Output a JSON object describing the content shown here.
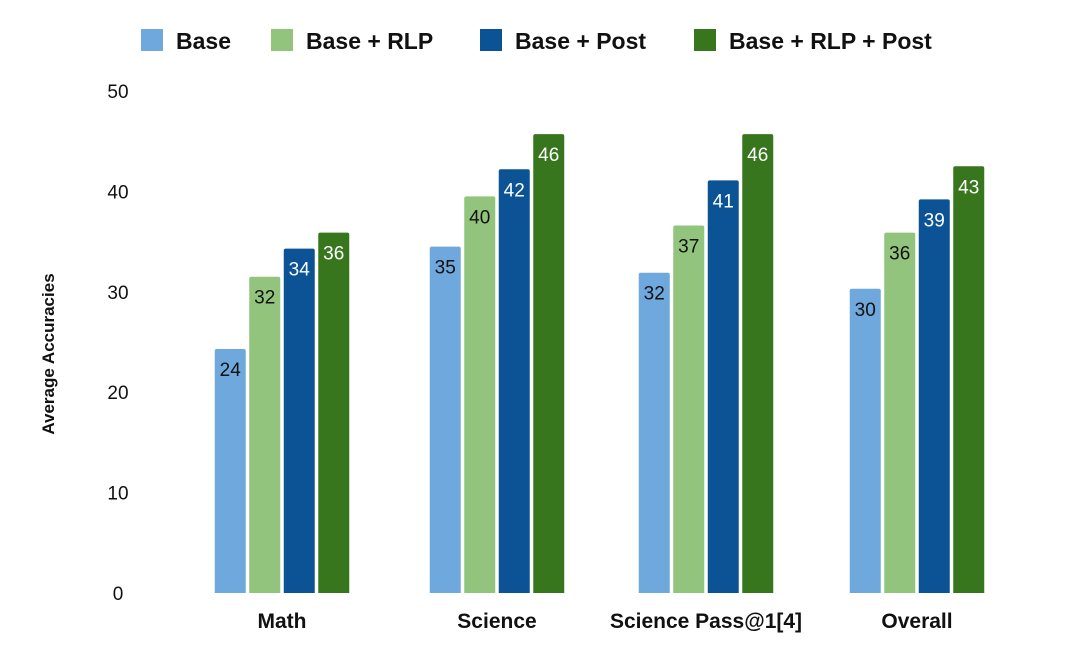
{
  "chart_data": {
    "type": "bar",
    "title": "",
    "xlabel": "",
    "ylabel": "Average Accuracies",
    "ylim": [
      0,
      50
    ],
    "yticks": [
      0,
      10,
      20,
      30,
      40,
      50
    ],
    "grid": false,
    "legend_position": "top",
    "categories": [
      "Math",
      "Science",
      "Science Pass@1[4]",
      "Overall"
    ],
    "series": [
      {
        "name": "Base",
        "color": "#6fa8dc",
        "label_color": "#111111",
        "values": [
          24.3,
          34.5,
          31.9,
          30.3
        ],
        "labels": [
          "24",
          "35",
          "32",
          "30"
        ]
      },
      {
        "name": "Base + RLP",
        "color": "#93c47d",
        "label_color": "#111111",
        "values": [
          31.5,
          39.5,
          36.6,
          35.9
        ],
        "labels": [
          "32",
          "40",
          "37",
          "36"
        ]
      },
      {
        "name": "Base + Post",
        "color": "#0b5394",
        "label_color": "#ffffff",
        "values": [
          34.3,
          42.2,
          41.1,
          39.2
        ],
        "labels": [
          "34",
          "42",
          "41",
          "39"
        ]
      },
      {
        "name": "Base + RLP + Post",
        "color": "#38761d",
        "label_color": "#ffffff",
        "values": [
          35.9,
          45.7,
          45.7,
          42.5
        ],
        "labels": [
          "36",
          "46",
          "46",
          "43"
        ]
      }
    ]
  }
}
